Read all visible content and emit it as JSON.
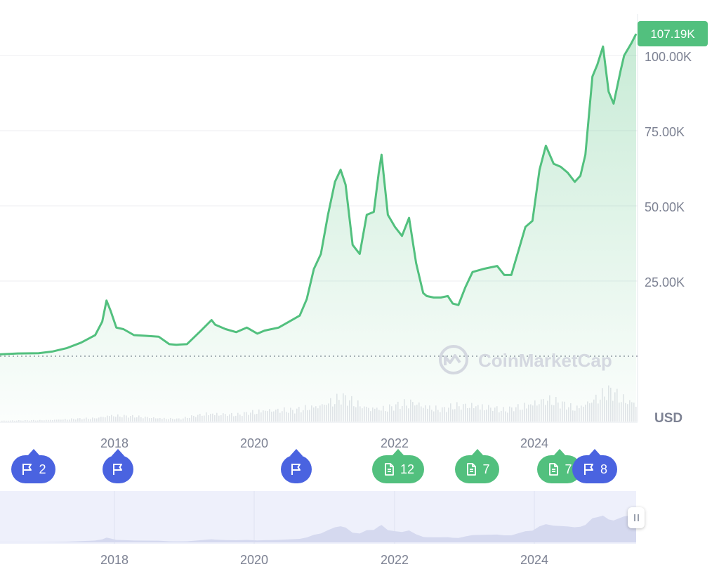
{
  "chart_data": {
    "type": "area",
    "currency": "USD",
    "current_price_label": "107.19K",
    "y_ticks": [
      "25.00K",
      "50.00K",
      "75.00K",
      "100.00K"
    ],
    "y_tick_values": [
      25000,
      50000,
      75000,
      100000
    ],
    "ylim": [
      0,
      112000
    ],
    "x_ticks": [
      "2018",
      "2020",
      "2022",
      "2024"
    ],
    "x_tick_values": [
      2018,
      2020,
      2022,
      2024
    ],
    "xlim": [
      2016.45,
      2025.47
    ],
    "grid": true,
    "watermark": "CoinMarketCap",
    "series": [
      {
        "color": "#52c07e",
        "x": [
          2016.45,
          2016.7,
          2017.0,
          2017.2,
          2017.4,
          2017.6,
          2017.8,
          2017.9,
          2017.96,
          2018.02,
          2018.1,
          2018.2,
          2018.35,
          2018.5,
          2018.7,
          2018.85,
          2018.95,
          2019.1,
          2019.3,
          2019.45,
          2019.5,
          2019.65,
          2019.8,
          2019.95,
          2020.1,
          2020.2,
          2020.4,
          2020.55,
          2020.7,
          2020.8,
          2020.9,
          2021.0,
          2021.1,
          2021.2,
          2021.28,
          2021.35,
          2021.45,
          2021.55,
          2021.65,
          2021.75,
          2021.82,
          2021.86,
          2021.95,
          2022.05,
          2022.15,
          2022.25,
          2022.35,
          2022.45,
          2022.5,
          2022.6,
          2022.7,
          2022.8,
          2022.87,
          2022.95,
          2023.05,
          2023.15,
          2023.3,
          2023.5,
          2023.6,
          2023.7,
          2023.8,
          2023.9,
          2024.0,
          2024.1,
          2024.19,
          2024.3,
          2024.4,
          2024.5,
          2024.6,
          2024.68,
          2024.75,
          2024.85,
          2024.92,
          2025.0,
          2025.08,
          2025.15,
          2025.25,
          2025.3,
          2025.4,
          2025.47
        ],
        "y": [
          600,
          900,
          1000,
          1600,
          2700,
          4500,
          7000,
          11500,
          18500,
          15000,
          9500,
          9000,
          7000,
          6800,
          6500,
          4000,
          3800,
          4000,
          8500,
          12000,
          10500,
          9000,
          8000,
          9500,
          7500,
          8500,
          9500,
          11500,
          13500,
          19000,
          29000,
          34000,
          47000,
          58000,
          62000,
          57000,
          37000,
          34000,
          47000,
          48000,
          61000,
          67000,
          47000,
          43000,
          40000,
          46000,
          31000,
          21000,
          20000,
          19500,
          19500,
          20000,
          17500,
          17000,
          23000,
          28000,
          29000,
          30000,
          27000,
          27000,
          35000,
          43000,
          45000,
          62000,
          70000,
          64000,
          63000,
          61000,
          58000,
          60000,
          67000,
          93000,
          97000,
          103000,
          88000,
          84000,
          95000,
          100000,
          104000,
          107190
        ]
      }
    ],
    "volume": {
      "x": [
        2016.45,
        2017.0,
        2017.8,
        2018.0,
        2018.5,
        2019.0,
        2019.4,
        2019.8,
        2020.2,
        2020.6,
        2021.0,
        2021.3,
        2021.6,
        2021.9,
        2022.3,
        2022.7,
        2022.9,
        2023.2,
        2023.6,
        2024.0,
        2024.2,
        2024.6,
        2024.9,
        2025.1,
        2025.3,
        2025.47
      ],
      "y": [
        0.02,
        0.03,
        0.08,
        0.15,
        0.1,
        0.06,
        0.2,
        0.15,
        0.28,
        0.25,
        0.4,
        0.55,
        0.35,
        0.3,
        0.45,
        0.28,
        0.35,
        0.4,
        0.25,
        0.45,
        0.5,
        0.32,
        0.55,
        0.7,
        0.5,
        0.45
      ]
    }
  },
  "events": [
    {
      "type": "flag",
      "count": "2"
    },
    {
      "type": "flag",
      "count": ""
    },
    {
      "type": "flag",
      "count": ""
    },
    {
      "type": "news",
      "count": "12"
    },
    {
      "type": "news",
      "count": "7"
    },
    {
      "type": "news",
      "count": "7"
    },
    {
      "type": "flag",
      "count": "8"
    }
  ],
  "colors": {
    "line": "#52c07e",
    "flag": "#4a63e0",
    "news": "#52c07e",
    "navigator_bg": "#eef0fb",
    "navigator_line": "#d5d9ef"
  }
}
